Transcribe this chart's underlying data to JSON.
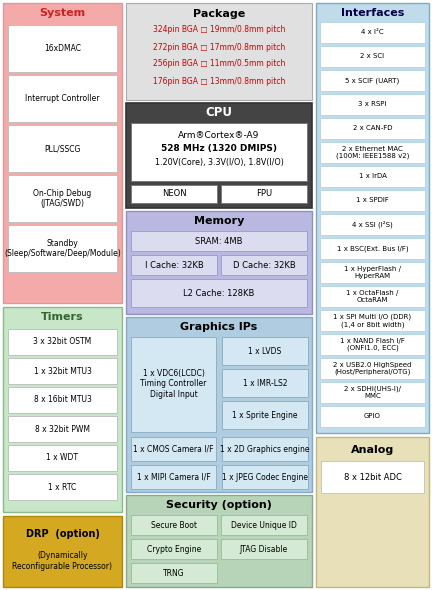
{
  "system": {
    "title": "System",
    "bg": "#f5aaaa",
    "border": "#dd9999",
    "title_color": "#cc2222",
    "items": [
      "16xDMAC",
      "Interrupt Controller",
      "PLL/SSCG",
      "On-Chip Debug\n(JTAG/SWD)",
      "Standby\n(Sleep/Software/Deep/Module)"
    ]
  },
  "timers": {
    "title": "Timers",
    "bg": "#c8e6c8",
    "border": "#88bb88",
    "title_color": "#336633",
    "items": [
      "3 x 32bit OSTM",
      "1 x 32bit MTU3",
      "8 x 16bit MTU3",
      "8 x 32bit PWM",
      "1 x WDT",
      "1 x RTC"
    ]
  },
  "drp": {
    "title": "DRP  (option)",
    "subtitle": "(Dynamically\nReconfigurable Processor)",
    "bg": "#d4a820",
    "border": "#b08800"
  },
  "package": {
    "title": "Package",
    "bg": "#e0e0e0",
    "border": "#aaaaaa",
    "items": [
      "324pin BGA □ 19mm/0.8mm pitch",
      "272pin BGA □ 17mm/0.8mm pitch",
      "256pin BGA □ 11mm/0.5mm pitch",
      "176pin BGA □ 13mm/0.8mm pitch"
    ],
    "item_color": "#cc0000"
  },
  "cpu": {
    "title": "CPU",
    "outer_bg": "#444444",
    "inner_bg": "#ffffff",
    "title_color": "#ffffff",
    "line1": "Arm®Cortex®-A9",
    "line2": "528 MHz (1320 DMIPS)",
    "line3": "1.20V(Core), 3.3V(I/O), 1.8V(I/O)",
    "neon": "NEON",
    "fpu": "FPU"
  },
  "memory": {
    "title": "Memory",
    "bg": "#b8b8e0",
    "border": "#9090c0",
    "inner_bg": "#dcdcf0",
    "sram": "SRAM: 4MB",
    "icache": "I Cache: 32KB",
    "dcache": "D Cache: 32KB",
    "l2cache": "L2 Cache: 128KB"
  },
  "graphics": {
    "title": "Graphics IPs",
    "bg": "#b0cce0",
    "border": "#80aac8",
    "inner_bg": "#d4e8f4",
    "vdc": "1 x VDC6(LCDC)\nTiming Controller\nDigital Input",
    "right_items": [
      "1 x LVDS",
      "1 x IMR-LS2",
      "1 x Sprite Engine"
    ],
    "cmos": "1 x CMOS Camera I/F",
    "gfx2d": "1 x 2D Graphics engine",
    "mipi": "1 x MIPI Camera I/F",
    "jpeg": "1 x JPEG Codec Engine"
  },
  "security": {
    "title": "Security (option)",
    "bg": "#b8d4b8",
    "border": "#88aa88",
    "inner_bg": "#d4ead4",
    "left": [
      "Secure Boot",
      "Crypto Engine",
      "TRNG"
    ],
    "right": [
      "Device Unique ID",
      "JTAG Disable"
    ]
  },
  "interfaces": {
    "title": "Interfaces",
    "bg": "#c0dcea",
    "border": "#80aac0",
    "title_color": "#000044",
    "items": [
      "4 x I²C",
      "2 x SCI",
      "5 x SCIF (UART)",
      "3 x RSPI",
      "2 x CAN-FD",
      "2 x Ethernet MAC\n(100M: IEEE1588 v2)",
      "1 x IrDA",
      "1 x SPDIF",
      "4 x SSI (I²S)",
      "1 x BSC(Ext. Bus I/F)",
      "1 x HyperFlash /\nHyperRAM",
      "1 x OctaFlash /\nOctaRAM",
      "1 x SPI Multi I/O (DDR)\n(1,4 or 8bit width)",
      "1 x NAND Flash I/F\n(ONFI1.0, ECC)",
      "2 x USB2.0 HighSpeed\n(Host/Peripheral/OTG)",
      "2 x SDHI(UHS-I)/\nMMC",
      "GPIO"
    ]
  },
  "analog": {
    "title": "Analog",
    "bg": "#e8e0b8",
    "border": "#c0b880",
    "items": [
      "8 x 12bit ADC"
    ]
  }
}
